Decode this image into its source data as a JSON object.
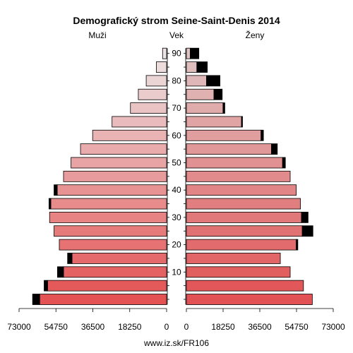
{
  "chart_data": {
    "type": "bar",
    "title": "Demografický strom Seine-Saint-Denis 2014",
    "left_label": "Muži",
    "center_label": "Vek",
    "right_label": "Ženy",
    "footer": "www.iz.sk/FR106",
    "x_range": [
      0,
      73000
    ],
    "x_ticks": [
      0,
      18250,
      36500,
      54750,
      73000
    ],
    "x_tick_labels": [
      "0",
      "18250",
      "36500",
      "54750",
      "73000"
    ],
    "age_ticks": [
      10,
      20,
      30,
      40,
      50,
      60,
      70,
      80,
      90
    ],
    "age_groups": [
      "0-4",
      "5-9",
      "10-14",
      "15-19",
      "20-24",
      "25-29",
      "30-34",
      "35-39",
      "40-44",
      "45-49",
      "50-54",
      "55-59",
      "60-64",
      "65-69",
      "70-74",
      "75-79",
      "80-84",
      "85-89",
      "90+"
    ],
    "series": [
      {
        "name": "Muži",
        "values": [
          62800,
          58900,
          51000,
          46800,
          53100,
          55700,
          57900,
          57300,
          54100,
          51000,
          47300,
          42600,
          36600,
          27000,
          17900,
          14000,
          10100,
          5100,
          2000
        ]
      },
      {
        "name": "Muži (black)",
        "values": [
          3500,
          1700,
          3000,
          2200,
          0,
          0,
          0,
          900,
          1600,
          0,
          0,
          0,
          0,
          0,
          0,
          0,
          0,
          0,
          0
        ]
      },
      {
        "name": "Ženy",
        "values": [
          62600,
          58200,
          51600,
          46700,
          54600,
          57600,
          57200,
          56700,
          54600,
          51600,
          47800,
          42300,
          37100,
          27400,
          18200,
          13700,
          10000,
          5200,
          1900
        ]
      },
      {
        "name": "Ženy (black)",
        "values": [
          0,
          0,
          0,
          0,
          800,
          5300,
          3300,
          0,
          0,
          0,
          1400,
          2900,
          1200,
          500,
          900,
          4100,
          6700,
          5200,
          4300
        ]
      }
    ]
  }
}
